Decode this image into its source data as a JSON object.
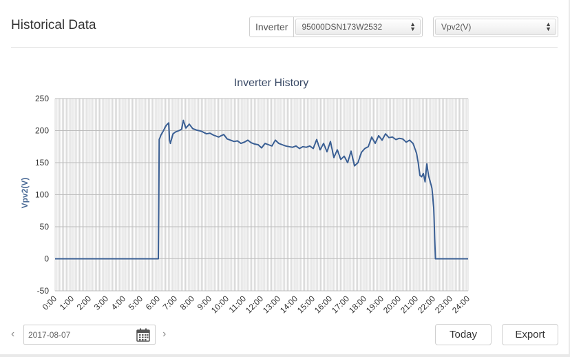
{
  "header": {
    "title": "Historical Data",
    "inverter_label": "Inverter",
    "inverter_value": "95000DSN173W2532",
    "metric_value": "Vpv2(V)"
  },
  "footer": {
    "date_value": "2017-08-07",
    "prev_symbol": "‹",
    "next_symbol": "›",
    "today_label": "Today",
    "export_label": "Export"
  },
  "chart_data": {
    "type": "line",
    "title": "Inverter History",
    "ylabel": "Vpv2(V)",
    "xlabel": "",
    "ylim": [
      -50,
      250
    ],
    "xlim": [
      0,
      24
    ],
    "y_ticks": [
      -50,
      0,
      50,
      100,
      150,
      200,
      250
    ],
    "x_ticks": [
      "0:00",
      "1:00",
      "2:00",
      "3:00",
      "4:00",
      "5:00",
      "6:00",
      "7:00",
      "8:00",
      "9:00",
      "10:00",
      "11:00",
      "12:00",
      "13:00",
      "14:00",
      "15:00",
      "16:00",
      "17:00",
      "18:00",
      "19:00",
      "20:00",
      "21:00",
      "22:00",
      "23:00",
      "24:00"
    ],
    "grid": true,
    "line_color": "#3a5f94",
    "series": [
      {
        "x": [
          0,
          6.0,
          6.05,
          6.15,
          6.3,
          6.45,
          6.6,
          6.65,
          6.7,
          6.85,
          7.0,
          7.2,
          7.35,
          7.45,
          7.6,
          7.8,
          8.0,
          8.2,
          8.5,
          8.8,
          9.0,
          9.2,
          9.5,
          9.8,
          10.0,
          10.2,
          10.4,
          10.6,
          10.8,
          11.0,
          11.2,
          11.4,
          11.6,
          11.8,
          12.0,
          12.2,
          12.4,
          12.6,
          12.8,
          13.0,
          13.2,
          13.4,
          13.6,
          13.8,
          14.0,
          14.2,
          14.4,
          14.6,
          14.8,
          15.0,
          15.2,
          15.4,
          15.6,
          15.8,
          16.0,
          16.2,
          16.4,
          16.6,
          16.8,
          17.0,
          17.2,
          17.4,
          17.6,
          17.8,
          18.0,
          18.2,
          18.4,
          18.6,
          18.8,
          19.0,
          19.2,
          19.4,
          19.6,
          19.8,
          20.0,
          20.2,
          20.4,
          20.6,
          20.8,
          21.0,
          21.1,
          21.2,
          21.3,
          21.4,
          21.5,
          21.6,
          21.7,
          21.8,
          21.9,
          22.0,
          22.1,
          22.2,
          24.0
        ],
        "y": [
          0,
          0,
          186,
          193,
          200,
          208,
          212,
          185,
          180,
          195,
          198,
          200,
          202,
          216,
          204,
          210,
          203,
          201,
          199,
          195,
          196,
          193,
          190,
          194,
          187,
          185,
          183,
          184,
          180,
          182,
          185,
          181,
          179,
          178,
          173,
          180,
          178,
          176,
          185,
          180,
          178,
          176,
          175,
          174,
          176,
          172,
          175,
          174,
          176,
          172,
          186,
          170,
          180,
          167,
          183,
          158,
          170,
          155,
          160,
          150,
          168,
          145,
          150,
          166,
          172,
          175,
          190,
          180,
          192,
          185,
          195,
          189,
          190,
          186,
          188,
          187,
          182,
          185,
          180,
          165,
          150,
          130,
          128,
          133,
          120,
          148,
          130,
          120,
          110,
          80,
          0,
          0,
          0
        ]
      }
    ]
  }
}
